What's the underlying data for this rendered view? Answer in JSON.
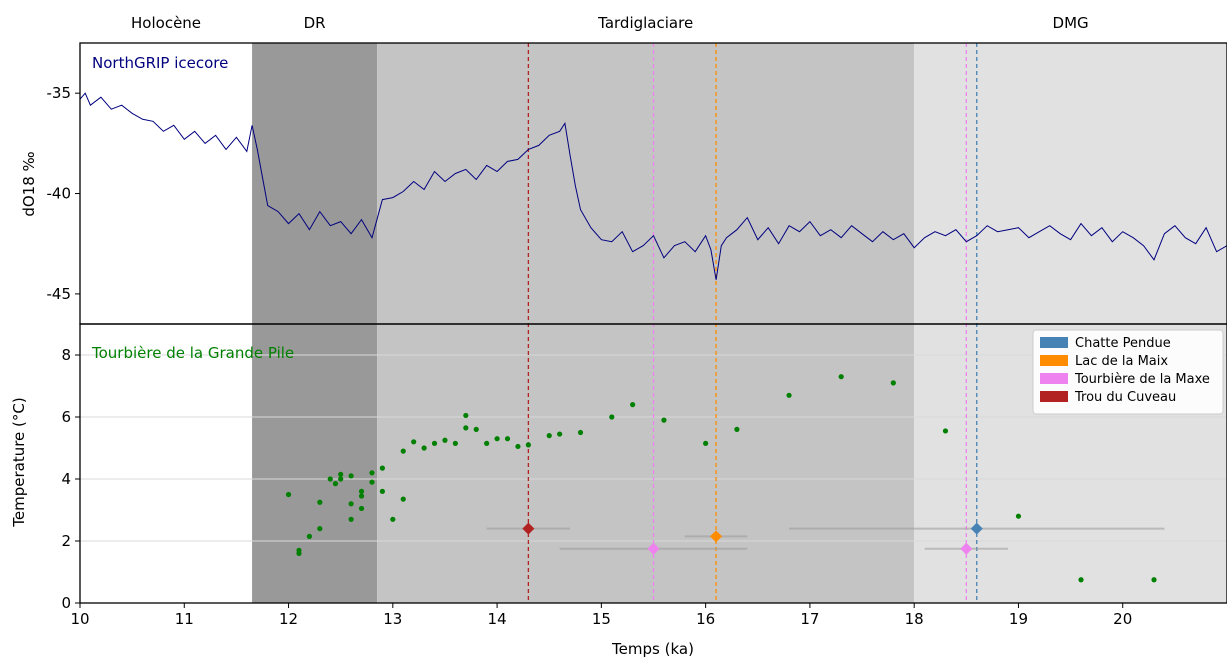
{
  "periods": [
    {
      "label": "Holocène",
      "start": 10,
      "end": 11.65,
      "color": "#ffffff"
    },
    {
      "label": "DR",
      "start": 11.65,
      "end": 12.85,
      "color": "#999999"
    },
    {
      "label": "Tardiglaciare",
      "start": 12.85,
      "end": 18.0,
      "color": "#c4c4c4"
    },
    {
      "label": "DMG",
      "start": 18.0,
      "end": 21.0,
      "color": "#e1e1e1"
    }
  ],
  "sites": [
    {
      "name": "Chatte Pendue",
      "color": "#4682b4",
      "age": 18.6,
      "age_min": 16.8,
      "age_max": 20.4,
      "temperature": 2.4
    },
    {
      "name": "Lac de la Maix",
      "color": "#ff8c00",
      "age": 16.1,
      "age_min": 15.8,
      "age_max": 16.4,
      "temperature": 2.15
    },
    {
      "name": "Tourbière de la Maxe",
      "color": "#ee82ee",
      "age": 15.5,
      "age_min": 14.6,
      "age_max": 16.4,
      "temperature": 1.75
    },
    {
      "name": "Tourbière de la Maxe",
      "color": "#ee82ee",
      "age": 18.5,
      "age_min": 18.1,
      "age_max": 18.9,
      "temperature": 1.75
    },
    {
      "name": "Trou du Cuveau",
      "color": "#b22222",
      "age": 14.3,
      "age_min": 13.9,
      "age_max": 14.7,
      "temperature": 2.4
    }
  ],
  "chart_data": [
    {
      "type": "line",
      "title": "NorthGRIP icecore",
      "xlabel": "",
      "ylabel": "dO18 ‰",
      "xlim": [
        10,
        21
      ],
      "ylim": [
        -46.5,
        -32.5
      ],
      "yticks": [
        -35,
        -40,
        -45
      ],
      "series_color": "#00007f",
      "series": [
        {
          "x": [
            10.0,
            10.05,
            10.1,
            10.2,
            10.3,
            10.4,
            10.5,
            10.6,
            10.7,
            10.8,
            10.9,
            11.0,
            11.1,
            11.2,
            11.3,
            11.4,
            11.5,
            11.6,
            11.65,
            11.7,
            11.75,
            11.8,
            11.9,
            12.0,
            12.1,
            12.2,
            12.3,
            12.4,
            12.5,
            12.6,
            12.7,
            12.8,
            12.9,
            13.0,
            13.1,
            13.2,
            13.3,
            13.4,
            13.5,
            13.6,
            13.7,
            13.8,
            13.9,
            14.0,
            14.1,
            14.2,
            14.3,
            14.4,
            14.5,
            14.6,
            14.65,
            14.7,
            14.75,
            14.8,
            14.9,
            15.0,
            15.1,
            15.2,
            15.3,
            15.4,
            15.5,
            15.6,
            15.7,
            15.8,
            15.9,
            16.0,
            16.05,
            16.1,
            16.15,
            16.2,
            16.3,
            16.4,
            16.5,
            16.6,
            16.7,
            16.8,
            16.9,
            17.0,
            17.1,
            17.2,
            17.3,
            17.4,
            17.5,
            17.6,
            17.7,
            17.8,
            17.9,
            18.0,
            18.1,
            18.2,
            18.3,
            18.4,
            18.5,
            18.6,
            18.7,
            18.8,
            18.9,
            19.0,
            19.1,
            19.2,
            19.3,
            19.4,
            19.5,
            19.6,
            19.7,
            19.8,
            19.9,
            20.0,
            20.1,
            20.2,
            20.3,
            20.4,
            20.5,
            20.6,
            20.7,
            20.8,
            20.9,
            21.0
          ],
          "y": [
            -35.3,
            -35.0,
            -35.6,
            -35.2,
            -35.8,
            -35.6,
            -36.0,
            -36.3,
            -36.4,
            -36.9,
            -36.6,
            -37.3,
            -36.9,
            -37.5,
            -37.1,
            -37.8,
            -37.2,
            -37.9,
            -36.6,
            -37.8,
            -39.2,
            -40.6,
            -40.9,
            -41.5,
            -41.0,
            -41.8,
            -40.9,
            -41.6,
            -41.4,
            -42.0,
            -41.3,
            -42.2,
            -40.3,
            -40.2,
            -39.9,
            -39.4,
            -39.8,
            -38.9,
            -39.4,
            -39.0,
            -38.8,
            -39.3,
            -38.6,
            -38.9,
            -38.4,
            -38.3,
            -37.8,
            -37.6,
            -37.1,
            -36.9,
            -36.5,
            -38.1,
            -39.6,
            -40.8,
            -41.7,
            -42.3,
            -42.4,
            -41.9,
            -42.9,
            -42.6,
            -42.1,
            -43.2,
            -42.6,
            -42.4,
            -42.9,
            -42.1,
            -42.8,
            -44.3,
            -42.6,
            -42.2,
            -41.8,
            -41.2,
            -42.3,
            -41.7,
            -42.5,
            -41.6,
            -41.9,
            -41.4,
            -42.1,
            -41.8,
            -42.2,
            -41.6,
            -42.0,
            -42.4,
            -41.9,
            -42.3,
            -42.0,
            -42.7,
            -42.2,
            -41.9,
            -42.1,
            -41.8,
            -42.4,
            -42.1,
            -41.6,
            -41.9,
            -41.8,
            -41.7,
            -42.2,
            -41.9,
            -41.6,
            -42.0,
            -42.3,
            -41.5,
            -42.1,
            -41.7,
            -42.4,
            -41.9,
            -42.2,
            -42.6,
            -43.3,
            -42.0,
            -41.6,
            -42.2,
            -42.5,
            -41.7,
            -42.9,
            -42.6
          ]
        }
      ]
    },
    {
      "type": "scatter",
      "title": "Tourbière de la Grande Pile",
      "xlabel": "Temps (ka)",
      "ylabel": "Temperature (°C)",
      "xlim": [
        10,
        21
      ],
      "ylim": [
        0,
        9
      ],
      "xticks": [
        10,
        11,
        12,
        13,
        14,
        15,
        16,
        17,
        18,
        19,
        20
      ],
      "yticks": [
        0,
        2,
        4,
        6,
        8
      ],
      "grid": true,
      "legend": "top-right",
      "point_color": "#008000",
      "points": {
        "x": [
          12.0,
          12.1,
          12.1,
          12.2,
          12.3,
          12.3,
          12.4,
          12.45,
          12.5,
          12.5,
          12.6,
          12.6,
          12.6,
          12.7,
          12.7,
          12.7,
          12.8,
          12.8,
          12.9,
          12.9,
          13.0,
          13.1,
          13.1,
          13.2,
          13.3,
          13.4,
          13.5,
          13.6,
          13.7,
          13.7,
          13.8,
          13.9,
          14.0,
          14.1,
          14.2,
          14.3,
          14.5,
          14.6,
          14.8,
          15.1,
          15.3,
          15.6,
          16.0,
          16.3,
          16.8,
          17.3,
          17.8,
          18.3,
          19.0,
          19.6,
          20.3
        ],
        "y": [
          3.5,
          1.6,
          1.7,
          2.15,
          2.4,
          3.25,
          4.0,
          3.85,
          4.15,
          4.0,
          4.1,
          3.2,
          2.7,
          3.45,
          3.6,
          3.05,
          4.2,
          3.9,
          4.35,
          3.6,
          2.7,
          3.35,
          4.9,
          5.2,
          5.0,
          5.15,
          5.25,
          5.15,
          6.05,
          5.65,
          5.6,
          5.15,
          5.3,
          5.3,
          5.05,
          5.1,
          5.4,
          5.45,
          5.5,
          6.0,
          6.4,
          5.9,
          5.15,
          5.6,
          6.7,
          7.3,
          7.1,
          5.55,
          2.8,
          0.75,
          0.75
        ]
      },
      "series": [
        {
          "name": "Chatte Pendue"
        },
        {
          "name": "Lac de la Maix"
        },
        {
          "name": "Tourbière de la Maxe"
        },
        {
          "name": "Trou du Cuveau"
        }
      ]
    }
  ]
}
